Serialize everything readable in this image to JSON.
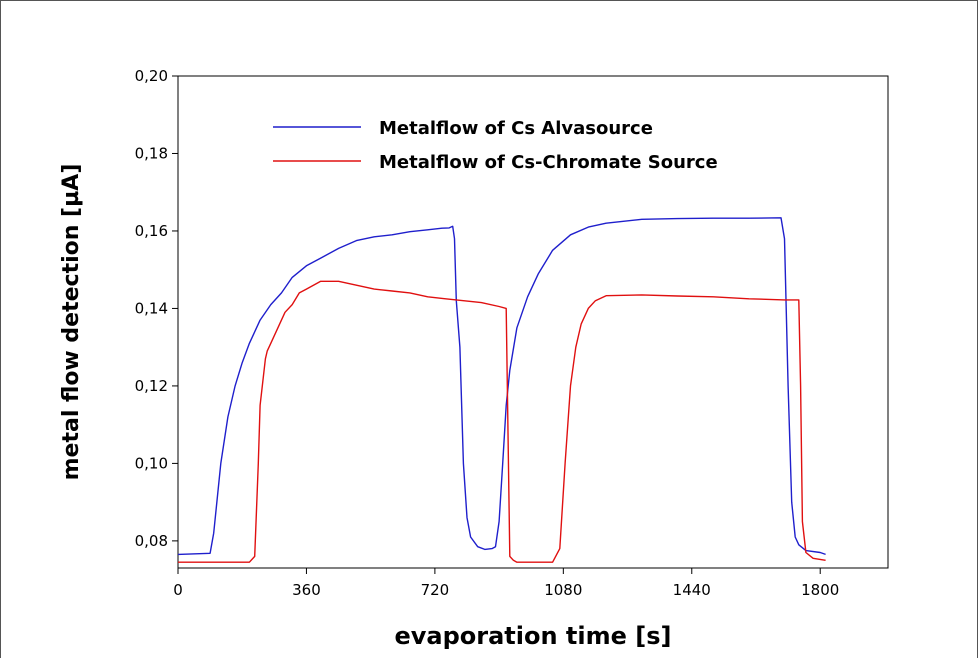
{
  "chart_data": {
    "type": "line",
    "xlabel": "evaporation time [s]",
    "ylabel": "metal flow detection [µA]",
    "xlim": [
      0,
      1990
    ],
    "ylim": [
      0.073,
      0.2
    ],
    "xticks": [
      0,
      360,
      720,
      1080,
      1440,
      1800
    ],
    "xtick_labels": [
      "0",
      "360",
      "720",
      "1080",
      "1440",
      "1800"
    ],
    "yticks": [
      0.08,
      0.1,
      0.12,
      0.14,
      0.16,
      0.18,
      0.2
    ],
    "ytick_labels": [
      "0,08",
      "0,10",
      "0,12",
      "0,14",
      "0,16",
      "0,18",
      "0,20"
    ],
    "grid": false,
    "legend_position": "top-center",
    "series": [
      {
        "name": "Metalflow of Cs Alvasource",
        "color": "#1f1fcc",
        "x": [
          0,
          90,
          100,
          120,
          140,
          160,
          180,
          200,
          230,
          260,
          290,
          320,
          360,
          400,
          450,
          500,
          550,
          600,
          650,
          700,
          740,
          760,
          770,
          775,
          780,
          790,
          800,
          810,
          820,
          840,
          860,
          880,
          890,
          900,
          910,
          920,
          930,
          950,
          980,
          1010,
          1050,
          1100,
          1150,
          1200,
          1300,
          1400,
          1500,
          1600,
          1690,
          1700,
          1710,
          1720,
          1730,
          1740,
          1760,
          1800,
          1815
        ],
        "y": [
          0.0765,
          0.0768,
          0.082,
          0.1,
          0.112,
          0.12,
          0.126,
          0.131,
          0.137,
          0.141,
          0.144,
          0.148,
          0.151,
          0.153,
          0.1555,
          0.1575,
          0.1585,
          0.159,
          0.1598,
          0.1603,
          0.1607,
          0.1608,
          0.1612,
          0.158,
          0.142,
          0.13,
          0.1,
          0.086,
          0.081,
          0.0785,
          0.0778,
          0.078,
          0.0785,
          0.085,
          0.1,
          0.115,
          0.124,
          0.135,
          0.143,
          0.149,
          0.155,
          0.159,
          0.161,
          0.162,
          0.163,
          0.1632,
          0.1633,
          0.1633,
          0.1634,
          0.158,
          0.12,
          0.09,
          0.081,
          0.079,
          0.0775,
          0.077,
          0.0765
        ]
      },
      {
        "name": "Metalflow of Cs-Chromate Source",
        "color": "#e01010",
        "x": [
          0,
          100,
          200,
          215,
          225,
          230,
          245,
          250,
          260,
          280,
          300,
          320,
          340,
          360,
          400,
          450,
          500,
          550,
          600,
          650,
          700,
          750,
          800,
          850,
          900,
          920,
          930,
          940,
          950,
          1000,
          1050,
          1070,
          1085,
          1100,
          1115,
          1130,
          1150,
          1170,
          1200,
          1300,
          1400,
          1500,
          1600,
          1700,
          1740,
          1745,
          1750,
          1760,
          1780,
          1815
        ],
        "y": [
          0.0745,
          0.0745,
          0.0745,
          0.076,
          0.1,
          0.115,
          0.127,
          0.129,
          0.131,
          0.135,
          0.139,
          0.141,
          0.144,
          0.145,
          0.147,
          0.147,
          0.146,
          0.145,
          0.1445,
          0.144,
          0.143,
          0.1425,
          0.142,
          0.1415,
          0.1405,
          0.14,
          0.076,
          0.075,
          0.0745,
          0.0745,
          0.0745,
          0.078,
          0.1,
          0.12,
          0.13,
          0.136,
          0.14,
          0.142,
          0.1433,
          0.1435,
          0.1432,
          0.143,
          0.1425,
          0.1422,
          0.1422,
          0.12,
          0.085,
          0.077,
          0.0755,
          0.075
        ]
      }
    ]
  }
}
